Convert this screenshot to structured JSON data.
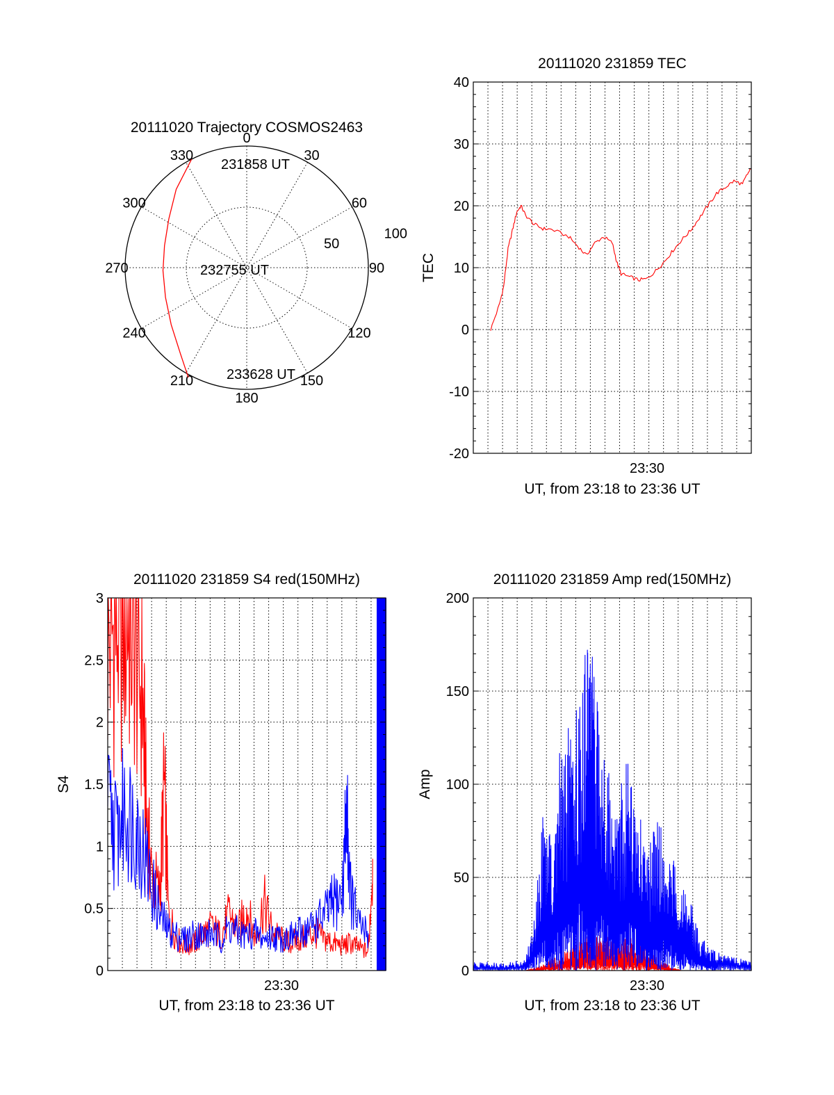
{
  "chart_data": [
    {
      "type": "polar",
      "title": "20111020 Trajectory COSMOS2463",
      "angle_labels": [
        "0",
        "30",
        "60",
        "90",
        "120",
        "150",
        "180",
        "210",
        "240",
        "270",
        "300",
        "330"
      ],
      "radial_labels": [
        "50",
        "100"
      ],
      "grid": true,
      "series": [
        {
          "color": "#ff0000",
          "points": [
            {
              "az": 333,
              "zenith": 90
            },
            {
              "az": 318,
              "zenith": 78
            },
            {
              "az": 302,
              "zenith": 68
            },
            {
              "az": 285,
              "zenith": 63
            },
            {
              "az": 268,
              "zenith": 62
            },
            {
              "az": 250,
              "zenith": 64
            },
            {
              "az": 233,
              "zenith": 70
            },
            {
              "az": 218,
              "zenith": 80
            },
            {
              "az": 208,
              "zenith": 92
            }
          ]
        }
      ],
      "annotations": [
        "231858 UT",
        "232755 UT",
        "233628 UT"
      ]
    },
    {
      "type": "line",
      "title": "20111020 231859 TEC",
      "xlabel": "UT, from 23:18 to 23:36 UT",
      "ylabel": "TEC",
      "xlim": [
        23.3,
        23.62
      ],
      "ylim": [
        -20,
        40
      ],
      "yticks": [
        -20,
        -10,
        0,
        10,
        20,
        30,
        40
      ],
      "xtick_labels": [
        {
          "x": 23.5,
          "label": "23:30"
        }
      ],
      "grid": true,
      "series": [
        {
          "color": "#ff0000",
          "x": [
            23.32,
            23.33,
            23.335,
            23.34,
            23.345,
            23.35,
            23.355,
            23.36,
            23.37,
            23.38,
            23.39,
            23.41,
            23.42,
            23.43,
            23.44,
            23.45,
            23.46,
            23.465,
            23.47,
            23.48,
            23.49,
            23.5,
            23.51,
            23.52,
            23.53,
            23.54,
            23.55,
            23.56,
            23.57,
            23.58,
            23.59,
            23.6,
            23.61,
            23.615,
            23.62
          ],
          "values": [
            0,
            4,
            7,
            13,
            16,
            19,
            20,
            18.5,
            17,
            16.3,
            16.2,
            15,
            13.5,
            12,
            14,
            15,
            14,
            11,
            9,
            8.5,
            8,
            8.2,
            9.5,
            11,
            12.8,
            14.5,
            16,
            18,
            20,
            22,
            23,
            24,
            23.5,
            25,
            26
          ]
        }
      ]
    },
    {
      "type": "line",
      "title": "20111020 231859 S4 red(150MHz)",
      "xlabel": "UT, from 23:18 to 23:36 UT",
      "ylabel": "S4",
      "xlim": [
        23.3,
        23.62
      ],
      "ylim": [
        0,
        3
      ],
      "yticks": [
        0,
        0.5,
        1,
        1.5,
        2,
        2.5,
        3
      ],
      "xtick_labels": [
        {
          "x": 23.5,
          "label": "23:30"
        }
      ],
      "grid": true,
      "series": [
        {
          "color": "#ff0000",
          "x": [
            23.3,
            23.31,
            23.32,
            23.33,
            23.34,
            23.345,
            23.35,
            23.36,
            23.365,
            23.37,
            23.38,
            23.39,
            23.4,
            23.41,
            23.42,
            23.43,
            23.44,
            23.45,
            23.46,
            23.47,
            23.48,
            23.49,
            23.5,
            23.51,
            23.52,
            23.53,
            23.54,
            23.55,
            23.56,
            23.57,
            23.58,
            23.59,
            23.6,
            23.605
          ],
          "values": [
            2.6,
            2.8,
            2.9,
            2.7,
            2.2,
            1.2,
            0.8,
            0.6,
            1.5,
            0.45,
            0.25,
            0.2,
            0.22,
            0.3,
            0.35,
            0.28,
            0.45,
            0.32,
            0.5,
            0.25,
            0.55,
            0.3,
            0.25,
            0.22,
            0.25,
            0.28,
            0.3,
            0.25,
            0.22,
            0.2,
            0.22,
            0.18,
            0.15,
            0.9
          ]
        },
        {
          "color": "#0000ff",
          "x": [
            23.3,
            23.31,
            23.32,
            23.33,
            23.34,
            23.35,
            23.36,
            23.37,
            23.38,
            23.39,
            23.4,
            23.41,
            23.42,
            23.43,
            23.44,
            23.45,
            23.46,
            23.47,
            23.48,
            23.49,
            23.5,
            23.51,
            23.52,
            23.53,
            23.54,
            23.55,
            23.56,
            23.57,
            23.575,
            23.58,
            23.59,
            23.6
          ],
          "values": [
            1.3,
            1.1,
            1.3,
            1.2,
            1.0,
            0.7,
            0.45,
            0.32,
            0.28,
            0.25,
            0.3,
            0.28,
            0.3,
            0.25,
            0.35,
            0.3,
            0.28,
            0.3,
            0.25,
            0.28,
            0.26,
            0.27,
            0.3,
            0.33,
            0.38,
            0.45,
            0.55,
            0.6,
            1.3,
            0.6,
            0.35,
            0.3
          ]
        }
      ]
    },
    {
      "type": "line",
      "title": "20111020 231859 Amp red(150MHz)",
      "xlabel": "UT, from 23:18 to 23:36 UT",
      "ylabel": "Amp",
      "xlim": [
        23.3,
        23.62
      ],
      "ylim": [
        0,
        200
      ],
      "yticks": [
        0,
        50,
        100,
        150,
        200
      ],
      "xtick_labels": [
        {
          "x": 23.5,
          "label": "23:30"
        }
      ],
      "grid": true,
      "series": [
        {
          "color": "#ff0000",
          "x": [
            23.3,
            23.36,
            23.37,
            23.38,
            23.39,
            23.4,
            23.41,
            23.42,
            23.43,
            23.44,
            23.45,
            23.46,
            23.47,
            23.48,
            23.49,
            23.5,
            23.51,
            23.52,
            23.53,
            23.54,
            23.62
          ],
          "values": [
            0,
            0,
            1,
            2,
            4,
            6,
            8,
            10,
            12,
            14,
            13,
            12,
            11,
            12,
            10,
            8,
            5,
            3,
            1,
            0,
            0
          ]
        },
        {
          "color": "#0000ff",
          "x": [
            23.3,
            23.32,
            23.34,
            23.36,
            23.37,
            23.38,
            23.39,
            23.4,
            23.41,
            23.42,
            23.43,
            23.435,
            23.44,
            23.45,
            23.46,
            23.47,
            23.48,
            23.49,
            23.5,
            23.51,
            23.52,
            23.53,
            23.54,
            23.55,
            23.56,
            23.57,
            23.58,
            23.6,
            23.62
          ],
          "values": [
            3,
            3,
            3,
            4,
            20,
            60,
            50,
            80,
            90,
            110,
            115,
            120,
            110,
            100,
            60,
            70,
            80,
            60,
            40,
            55,
            50,
            40,
            30,
            25,
            15,
            10,
            8,
            5,
            3
          ]
        }
      ]
    }
  ]
}
